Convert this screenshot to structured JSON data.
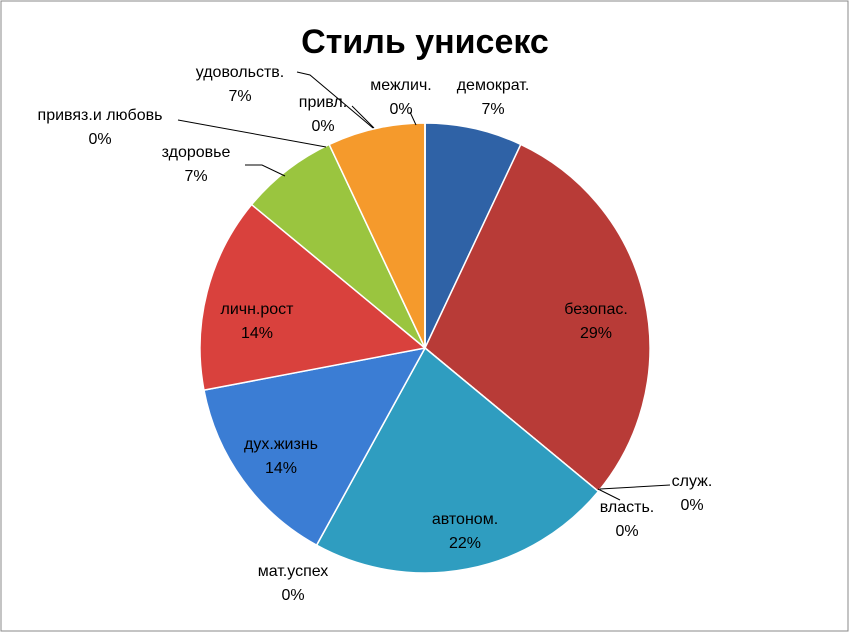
{
  "chart_data": {
    "type": "pie",
    "title": "Стиль унисекс",
    "categories": [
      "демократ.",
      "безопас.",
      "служ.",
      "власть.",
      "автоном.",
      "мат.успех",
      "дух.жизнь",
      "личн.рост",
      "здоровье",
      "привяз.и любовь",
      "удовольств.",
      "привл.",
      "межлич."
    ],
    "values": [
      7,
      29,
      0,
      0,
      22,
      0,
      14,
      14,
      7,
      0,
      7,
      0,
      0
    ],
    "value_labels": [
      "7%",
      "29%",
      "0%",
      "0%",
      "22%",
      "0%",
      "14%",
      "14%",
      "7%",
      "0%",
      "7%",
      "0%",
      "0%"
    ],
    "colors": [
      "#2f62a6",
      "#b83b37",
      "#8aa64a",
      "#6a4f8f",
      "#2f9dc0",
      "#e8882a",
      "#3b7dd4",
      "#d9413d",
      "#9ac53f",
      "#7b5ca8",
      "#f59a2c",
      "#4aa8c8",
      "#f0a040"
    ]
  }
}
